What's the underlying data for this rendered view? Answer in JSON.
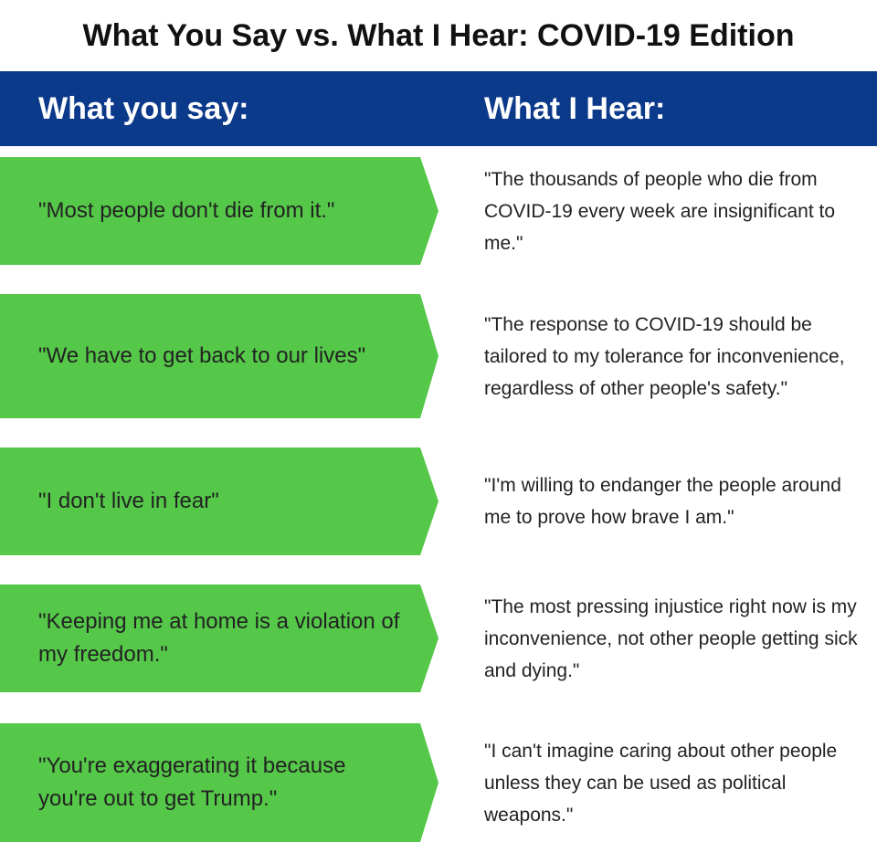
{
  "title": "What You Say vs. What I Hear: COVID-19 Edition",
  "header": {
    "left": "What you say:",
    "right": "What  I Hear:"
  },
  "colors": {
    "header_bg": "#0c3a8a",
    "say_bg": "#55c849"
  },
  "rows": [
    {
      "say": "\"Most people don't die from it.\"",
      "hear": "\"The thousands of people who die from COVID-19 every week are insignificant to me.\""
    },
    {
      "say": "\"We have to get back to our lives\"",
      "hear": "\"The response to COVID-19 should be tailored to my tolerance for inconvenience, regardless of other people's safety.\""
    },
    {
      "say": "\"I don't live in fear\"",
      "hear": "\"I'm willing to endanger the people around me to prove how brave I am.\""
    },
    {
      "say": "\"Keeping me at home is a violation of my freedom.\"",
      "hear": "\"The most pressing injustice right now is my inconvenience, not other people getting sick and dying.\""
    },
    {
      "say": "\"You're exaggerating it because you're out to get Trump.\"",
      "hear": "\"I can't imagine caring about other people unless they can be used as political weapons.\""
    }
  ]
}
